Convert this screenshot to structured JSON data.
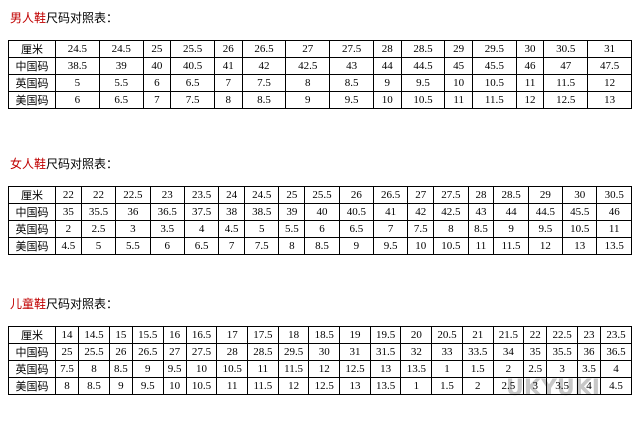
{
  "tables": [
    {
      "title_highlight": "男人鞋",
      "title_rest": "尺码对照表：",
      "rows": [
        [
          "厘米",
          "24.5",
          "24.5",
          "25",
          "25.5",
          "26",
          "26.5",
          "27",
          "27.5",
          "28",
          "28.5",
          "29",
          "29.5",
          "30",
          "30.5",
          "31"
        ],
        [
          "中国码",
          "38.5",
          "39",
          "40",
          "40.5",
          "41",
          "42",
          "42.5",
          "43",
          "44",
          "44.5",
          "45",
          "45.5",
          "46",
          "47",
          "47.5"
        ],
        [
          "英国码",
          "5",
          "5.5",
          "6",
          "6.5",
          "7",
          "7.5",
          "8",
          "8.5",
          "9",
          "9.5",
          "10",
          "10.5",
          "11",
          "11.5",
          "12"
        ],
        [
          "美国码",
          "6",
          "6.5",
          "7",
          "7.5",
          "8",
          "8.5",
          "9",
          "9.5",
          "10",
          "10.5",
          "11",
          "11.5",
          "12",
          "12.5",
          "13"
        ]
      ]
    },
    {
      "title_highlight": "女人鞋",
      "title_rest": "尺码对照表：",
      "rows": [
        [
          "厘米",
          "22",
          "22",
          "22.5",
          "23",
          "23.5",
          "24",
          "24.5",
          "25",
          "25.5",
          "26",
          "26.5",
          "27",
          "27.5",
          "28",
          "28.5",
          "29",
          "30",
          "30.5"
        ],
        [
          "中国码",
          "35",
          "35.5",
          "36",
          "36.5",
          "37.5",
          "38",
          "38.5",
          "39",
          "40",
          "40.5",
          "41",
          "42",
          "42.5",
          "43",
          "44",
          "44.5",
          "45.5",
          "46"
        ],
        [
          "英国码",
          "2",
          "2.5",
          "3",
          "3.5",
          "4",
          "4.5",
          "5",
          "5.5",
          "6",
          "6.5",
          "7",
          "7.5",
          "8",
          "8.5",
          "9",
          "9.5",
          "10.5",
          "11"
        ],
        [
          "美国码",
          "4.5",
          "5",
          "5.5",
          "6",
          "6.5",
          "7",
          "7.5",
          "8",
          "8.5",
          "9",
          "9.5",
          "10",
          "10.5",
          "11",
          "11.5",
          "12",
          "13",
          "13.5"
        ]
      ]
    },
    {
      "title_highlight": "儿童鞋",
      "title_rest": "尺码对照表：",
      "rows": [
        [
          "厘米",
          "14",
          "14.5",
          "15",
          "15.5",
          "16",
          "16.5",
          "17",
          "17.5",
          "18",
          "18.5",
          "19",
          "19.5",
          "20",
          "20.5",
          "21",
          "21.5",
          "22",
          "22.5",
          "23",
          "23.5"
        ],
        [
          "中国码",
          "25",
          "25.5",
          "26",
          "26.5",
          "27",
          "27.5",
          "28",
          "28.5",
          "29.5",
          "30",
          "31",
          "31.5",
          "32",
          "33",
          "33.5",
          "34",
          "35",
          "35.5",
          "36",
          "36.5"
        ],
        [
          "英国码",
          "7.5",
          "8",
          "8.5",
          "9",
          "9.5",
          "10",
          "10.5",
          "11",
          "11.5",
          "12",
          "12.5",
          "13",
          "13.5",
          "1",
          "1.5",
          "2",
          "2.5",
          "3",
          "3.5",
          "4"
        ],
        [
          "美国码",
          "8",
          "8.5",
          "9",
          "9.5",
          "10",
          "10.5",
          "11",
          "11.5",
          "12",
          "12.5",
          "13",
          "13.5",
          "1",
          "1.5",
          "2",
          "2.5",
          "3",
          "3.5",
          "4",
          "4.5"
        ]
      ]
    }
  ],
  "watermark": "UKYUKI"
}
